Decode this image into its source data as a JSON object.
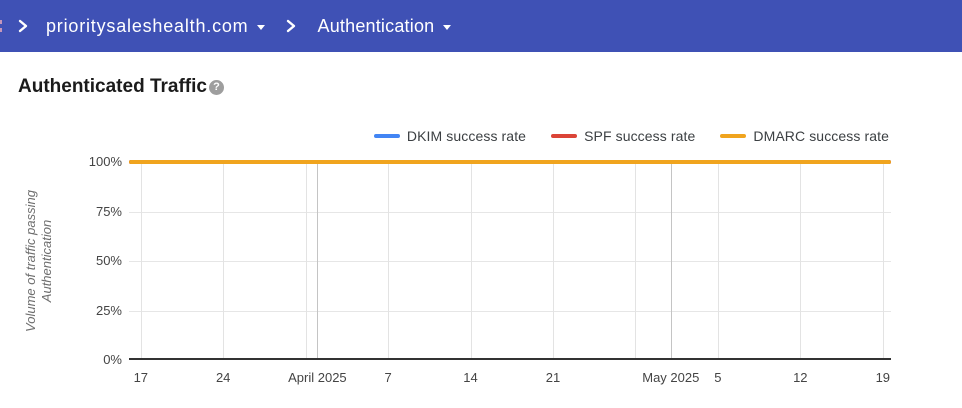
{
  "header": {
    "bg_color": "#3F51B5",
    "breadcrumb": [
      {
        "label": "prioritysaleshealth.com",
        "has_dropdown": true
      },
      {
        "label": "Authentication",
        "has_dropdown": true
      }
    ]
  },
  "page": {
    "title": "Authenticated Traffic",
    "help_glyph": "?"
  },
  "chart_data": {
    "type": "line",
    "title": "Authenticated Traffic",
    "legend_position": "top",
    "grid": true,
    "y_axis": {
      "title_lines": [
        "Volume of traffic passing",
        "Authentication"
      ],
      "range": [
        0,
        100
      ],
      "ticks": [
        {
          "label": "0%",
          "percent": 0
        },
        {
          "label": "25%",
          "percent": 25
        },
        {
          "label": "50%",
          "percent": 50
        },
        {
          "label": "75%",
          "percent": 75
        },
        {
          "label": "100%",
          "percent": 100
        }
      ]
    },
    "x_axis": {
      "ticks": [
        {
          "label": "17",
          "day": 0
        },
        {
          "label": "24",
          "day": 7
        },
        {
          "label": "April 2025",
          "day": 15,
          "month_start": true
        },
        {
          "label": "7",
          "day": 21
        },
        {
          "label": "14",
          "day": 28
        },
        {
          "label": "21",
          "day": 35
        },
        {
          "label": "May 2025",
          "day": 45,
          "month_start": true
        },
        {
          "label": "5",
          "day": 49
        },
        {
          "label": "12",
          "day": 56
        },
        {
          "label": "19",
          "day": 63
        }
      ],
      "week_gridline_days": [
        0,
        7,
        14,
        21,
        28,
        35,
        42,
        49,
        56,
        63
      ],
      "month_gridline_days": [
        15,
        45
      ]
    },
    "series": [
      {
        "name": "DKIM success rate",
        "color": "#4285F4",
        "value_percent": 100
      },
      {
        "name": "SPF success rate",
        "color": "#DB4437",
        "value_percent": 100
      },
      {
        "name": "DMARC success rate",
        "color": "#F0A41E",
        "value_percent": 100
      }
    ]
  }
}
